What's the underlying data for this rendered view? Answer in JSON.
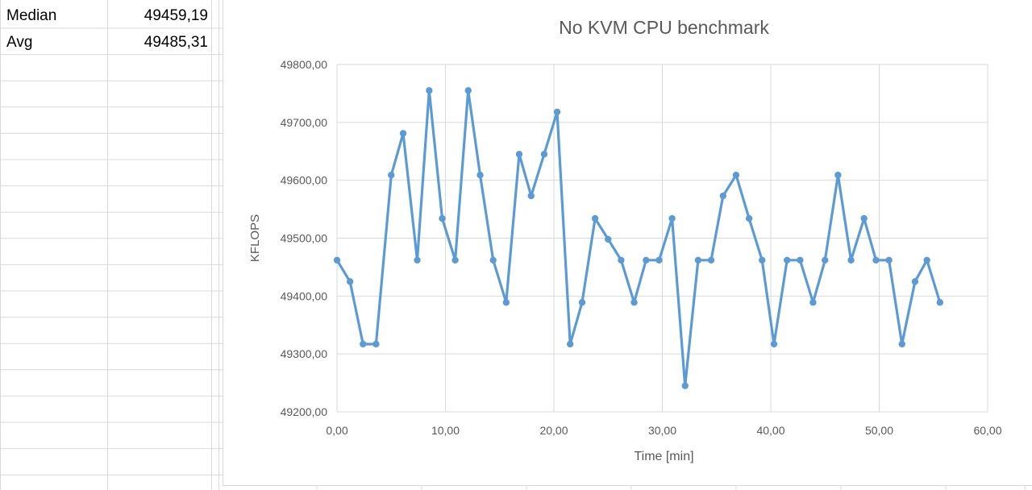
{
  "summary": {
    "rows": [
      {
        "label": "Median",
        "value": "49459,19"
      },
      {
        "label": "Avg",
        "value": "49485,31"
      }
    ]
  },
  "chart_data": {
    "type": "line",
    "title": "No KVM CPU benchmark",
    "xlabel": "Time [min]",
    "ylabel": "KFLOPS",
    "xlim": [
      0,
      60
    ],
    "ylim": [
      49200,
      49800
    ],
    "x_ticks": [
      0,
      10,
      20,
      30,
      40,
      50,
      60
    ],
    "x_tick_labels": [
      "0,00",
      "10,00",
      "20,00",
      "30,00",
      "40,00",
      "50,00",
      "60,00"
    ],
    "y_ticks": [
      49200,
      49300,
      49400,
      49500,
      49600,
      49700,
      49800
    ],
    "y_tick_labels": [
      "49200,00",
      "49300,00",
      "49400,00",
      "49500,00",
      "49600,00",
      "49700,00",
      "49800,00"
    ],
    "grid": true,
    "line_color": "#5B9BD5",
    "series": [
      {
        "points": [
          [
            0.0,
            49462
          ],
          [
            1.2,
            49425
          ],
          [
            2.4,
            49317
          ],
          [
            3.6,
            49317
          ],
          [
            5.0,
            49609
          ],
          [
            6.1,
            49681
          ],
          [
            7.4,
            49462
          ],
          [
            8.5,
            49755
          ],
          [
            9.7,
            49534
          ],
          [
            10.9,
            49462
          ],
          [
            12.1,
            49755
          ],
          [
            13.2,
            49609
          ],
          [
            14.4,
            49462
          ],
          [
            15.6,
            49389
          ],
          [
            16.8,
            49645
          ],
          [
            17.9,
            49573
          ],
          [
            19.1,
            49645
          ],
          [
            20.3,
            49718
          ],
          [
            21.5,
            49317
          ],
          [
            22.6,
            49389
          ],
          [
            23.8,
            49534
          ],
          [
            25.0,
            49498
          ],
          [
            26.2,
            49462
          ],
          [
            27.4,
            49389
          ],
          [
            28.5,
            49462
          ],
          [
            29.7,
            49462
          ],
          [
            30.9,
            49534
          ],
          [
            32.1,
            49245
          ],
          [
            33.3,
            49462
          ],
          [
            34.5,
            49462
          ],
          [
            35.6,
            49573
          ],
          [
            36.8,
            49609
          ],
          [
            38.0,
            49534
          ],
          [
            39.2,
            49462
          ],
          [
            40.3,
            49317
          ],
          [
            41.5,
            49462
          ],
          [
            42.7,
            49462
          ],
          [
            43.9,
            49389
          ],
          [
            45.0,
            49462
          ],
          [
            46.2,
            49609
          ],
          [
            47.4,
            49462
          ],
          [
            48.6,
            49534
          ],
          [
            49.7,
            49462
          ],
          [
            50.9,
            49462
          ],
          [
            52.1,
            49317
          ],
          [
            53.3,
            49425
          ],
          [
            54.4,
            49462
          ],
          [
            55.6,
            49389
          ]
        ]
      }
    ]
  }
}
